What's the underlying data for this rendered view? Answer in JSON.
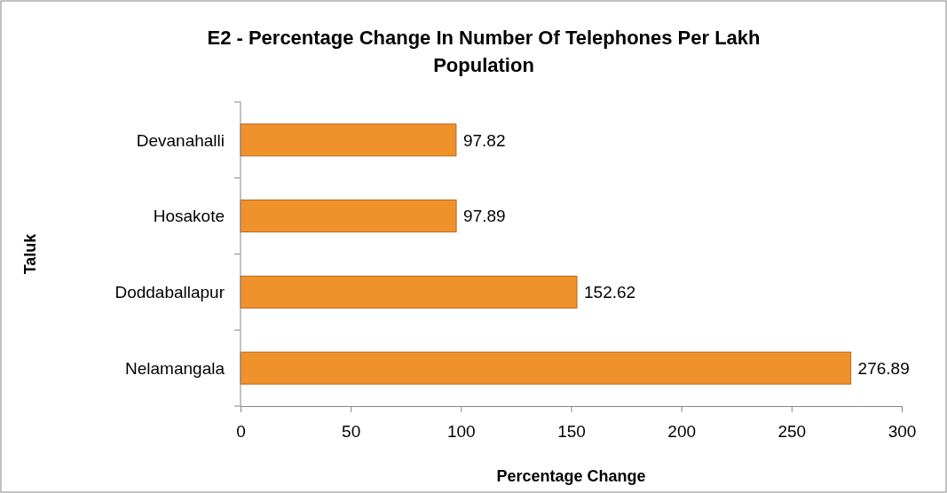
{
  "chart_data": {
    "type": "bar",
    "orientation": "horizontal",
    "title": "E2 - Percentage Change In Number Of Telephones Per Lakh Population",
    "xlabel": "Percentage Change",
    "ylabel": "Taluk",
    "categories": [
      "Devanahalli",
      "Hosakote",
      "Doddaballapur",
      "Nelamangala"
    ],
    "values": [
      97.82,
      97.89,
      152.62,
      276.89
    ],
    "color": "#f0922b",
    "xlim": [
      0,
      300
    ],
    "xticks": [
      0,
      50,
      100,
      150,
      200,
      250,
      300
    ],
    "data_labels": true,
    "grid": false
  }
}
